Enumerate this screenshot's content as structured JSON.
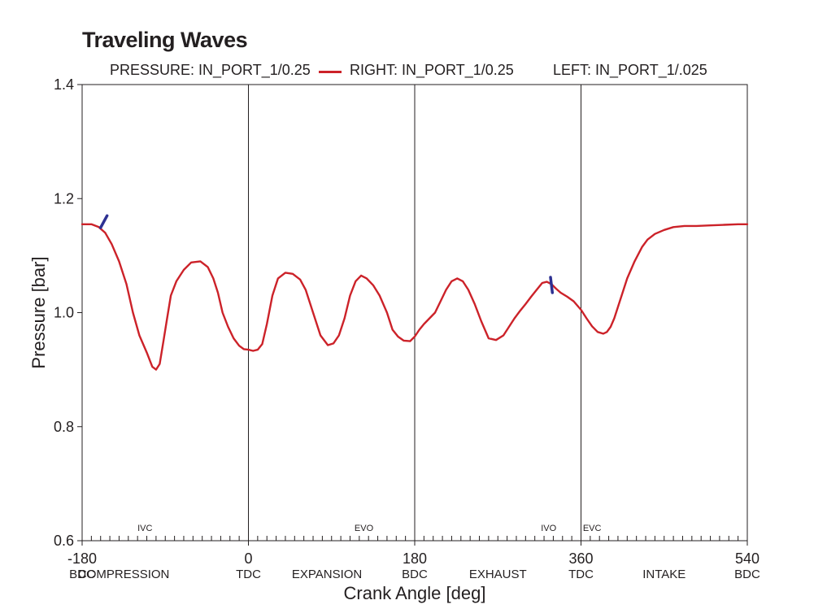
{
  "chart_data": {
    "type": "line",
    "title": "Traveling Waves",
    "legend": [
      {
        "label": "PRESSURE: IN_PORT_1/0.25",
        "color": "",
        "marker": false
      },
      {
        "label": "RIGHT: IN_PORT_1/0.25",
        "color": "#cc2229",
        "marker": true
      },
      {
        "label": "LEFT: IN_PORT_1/.025",
        "color": "",
        "marker": false
      }
    ],
    "xlabel": "Crank Angle [deg]",
    "ylabel": "Pressure [bar]",
    "xlim": [
      -180,
      540
    ],
    "ylim": [
      0.6,
      1.4
    ],
    "x_ticks": [
      -180,
      0,
      180,
      360,
      540
    ],
    "x_tick_labels": [
      "-180",
      "0",
      "180",
      "360",
      "540"
    ],
    "x_sub_labels": [
      {
        "x": -180,
        "text": "BDC"
      },
      {
        "x": -135,
        "text": "COMPRESSION"
      },
      {
        "x": 0,
        "text": "TDC"
      },
      {
        "x": 85,
        "text": "EXPANSION"
      },
      {
        "x": 180,
        "text": "BDC"
      },
      {
        "x": 270,
        "text": "EXHAUST"
      },
      {
        "x": 360,
        "text": "TDC"
      },
      {
        "x": 450,
        "text": "INTAKE"
      },
      {
        "x": 540,
        "text": "BDC"
      }
    ],
    "y_ticks": [
      0.6,
      0.8,
      1.0,
      1.2,
      1.4
    ],
    "y_tick_labels": [
      "0.6",
      "0.8",
      "1.0",
      "1.2",
      "1.4"
    ],
    "vertical_lines": [
      0,
      180,
      360
    ],
    "event_labels": [
      {
        "x": -112,
        "text": "IVC"
      },
      {
        "x": 125,
        "text": "EVO"
      },
      {
        "x": 325,
        "text": "IVO"
      },
      {
        "x": 372,
        "text": "EVC"
      }
    ],
    "grid": false,
    "series": [
      {
        "name": "RIGHT: IN_PORT_1/0.25",
        "color": "#cc2229",
        "x": [
          -180,
          -170,
          -162,
          -155,
          -148,
          -140,
          -132,
          -125,
          -118,
          -110,
          -104,
          -100,
          -96,
          -92,
          -88,
          -84,
          -78,
          -70,
          -62,
          -52,
          -44,
          -38,
          -33,
          -28,
          -22,
          -16,
          -10,
          -5,
          0,
          5,
          10,
          15,
          20,
          26,
          32,
          40,
          48,
          56,
          62,
          70,
          78,
          86,
          92,
          98,
          104,
          110,
          116,
          122,
          128,
          135,
          142,
          150,
          156,
          162,
          168,
          175,
          180,
          185,
          190,
          196,
          202,
          208,
          214,
          220,
          226,
          232,
          238,
          245,
          252,
          260,
          268,
          276,
          282,
          288,
          294,
          300,
          306,
          312,
          318,
          323,
          328,
          333,
          338,
          345,
          352,
          360,
          366,
          372,
          378,
          384,
          388,
          392,
          396,
          402,
          410,
          418,
          426,
          432,
          440,
          450,
          460,
          472,
          485,
          500,
          515,
          530,
          540
        ],
        "y": [
          1.155,
          1.155,
          1.15,
          1.14,
          1.12,
          1.09,
          1.05,
          1.0,
          0.96,
          0.93,
          0.905,
          0.9,
          0.91,
          0.95,
          0.99,
          1.03,
          1.055,
          1.075,
          1.088,
          1.09,
          1.08,
          1.06,
          1.035,
          1.0,
          0.975,
          0.955,
          0.942,
          0.936,
          0.935,
          0.933,
          0.935,
          0.945,
          0.98,
          1.03,
          1.06,
          1.07,
          1.068,
          1.058,
          1.04,
          1.0,
          0.96,
          0.943,
          0.946,
          0.96,
          0.99,
          1.03,
          1.055,
          1.065,
          1.06,
          1.048,
          1.03,
          1.0,
          0.97,
          0.958,
          0.951,
          0.95,
          0.958,
          0.97,
          0.98,
          0.99,
          1.0,
          1.02,
          1.04,
          1.055,
          1.06,
          1.055,
          1.04,
          1.015,
          0.985,
          0.955,
          0.952,
          0.96,
          0.975,
          0.99,
          1.003,
          1.015,
          1.028,
          1.04,
          1.052,
          1.054,
          1.05,
          1.042,
          1.035,
          1.028,
          1.02,
          1.005,
          0.99,
          0.976,
          0.966,
          0.963,
          0.966,
          0.975,
          0.99,
          1.02,
          1.06,
          1.09,
          1.115,
          1.128,
          1.138,
          1.145,
          1.15,
          1.152,
          1.152,
          1.153,
          1.154,
          1.155,
          1.155
        ]
      }
    ],
    "markers": [
      {
        "x1": -160,
        "y1": 1.149,
        "x2": -153,
        "y2": 1.17,
        "color": "#2e3192"
      },
      {
        "x1": 329,
        "y1": 1.035,
        "x2": 327,
        "y2": 1.062,
        "color": "#2e3192"
      }
    ]
  }
}
